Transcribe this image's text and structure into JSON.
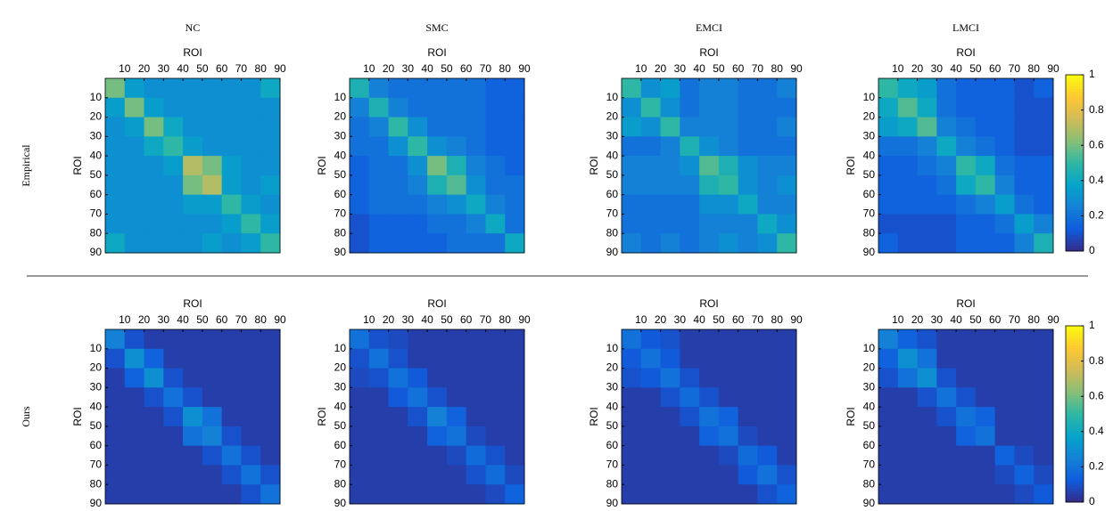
{
  "chart_data": {
    "type": "heatmap",
    "columns": [
      "NC",
      "SMC",
      "EMCI",
      "LMCI"
    ],
    "rows": [
      "Empirical",
      "Ours"
    ],
    "xlabel": "ROI",
    "ylabel": "ROI",
    "xlim": [
      0,
      90
    ],
    "ylim": [
      0,
      90
    ],
    "xticks": [
      10,
      20,
      30,
      40,
      50,
      60,
      70,
      80,
      90
    ],
    "yticks": [
      10,
      20,
      30,
      40,
      50,
      60,
      70,
      80,
      90
    ],
    "clim": [
      0,
      1
    ],
    "cticks": [
      0,
      0.2,
      0.4,
      0.6,
      0.8,
      1
    ],
    "colormap": [
      "#352a87",
      "#0f5cdd",
      "#1481d6",
      "#06a4ca",
      "#2eb7a4",
      "#87bf77",
      "#d1bb59",
      "#fec832",
      "#f9fb0e"
    ],
    "matrices": [
      [
        [
          [
            0.6,
            0.35,
            0.3,
            0.3,
            0.3,
            0.3,
            0.3,
            0.3,
            0.4
          ],
          [
            0.35,
            0.6,
            0.35,
            0.3,
            0.3,
            0.3,
            0.3,
            0.3,
            0.3
          ],
          [
            0.3,
            0.35,
            0.6,
            0.4,
            0.3,
            0.3,
            0.3,
            0.3,
            0.3
          ],
          [
            0.3,
            0.3,
            0.4,
            0.5,
            0.35,
            0.3,
            0.3,
            0.3,
            0.3
          ],
          [
            0.3,
            0.3,
            0.3,
            0.35,
            0.7,
            0.6,
            0.35,
            0.3,
            0.3
          ],
          [
            0.3,
            0.3,
            0.3,
            0.3,
            0.6,
            0.7,
            0.35,
            0.3,
            0.35
          ],
          [
            0.3,
            0.3,
            0.3,
            0.3,
            0.35,
            0.35,
            0.5,
            0.35,
            0.3
          ],
          [
            0.3,
            0.3,
            0.3,
            0.3,
            0.3,
            0.3,
            0.35,
            0.5,
            0.35
          ],
          [
            0.4,
            0.3,
            0.3,
            0.3,
            0.3,
            0.35,
            0.3,
            0.35,
            0.5
          ]
        ],
        [
          [
            0.45,
            0.25,
            0.2,
            0.2,
            0.2,
            0.2,
            0.2,
            0.15,
            0.15
          ],
          [
            0.25,
            0.45,
            0.25,
            0.2,
            0.2,
            0.2,
            0.2,
            0.15,
            0.15
          ],
          [
            0.2,
            0.25,
            0.5,
            0.3,
            0.2,
            0.2,
            0.2,
            0.15,
            0.15
          ],
          [
            0.2,
            0.2,
            0.3,
            0.5,
            0.3,
            0.25,
            0.2,
            0.15,
            0.15
          ],
          [
            0.15,
            0.2,
            0.2,
            0.3,
            0.6,
            0.45,
            0.25,
            0.2,
            0.15
          ],
          [
            0.15,
            0.2,
            0.2,
            0.25,
            0.45,
            0.55,
            0.3,
            0.2,
            0.2
          ],
          [
            0.15,
            0.2,
            0.2,
            0.2,
            0.25,
            0.3,
            0.4,
            0.25,
            0.2
          ],
          [
            0.1,
            0.15,
            0.15,
            0.15,
            0.2,
            0.2,
            0.25,
            0.4,
            0.2
          ],
          [
            0.1,
            0.15,
            0.15,
            0.15,
            0.15,
            0.2,
            0.2,
            0.2,
            0.4
          ]
        ],
        [
          [
            0.5,
            0.3,
            0.35,
            0.2,
            0.25,
            0.25,
            0.2,
            0.2,
            0.25
          ],
          [
            0.3,
            0.5,
            0.3,
            0.2,
            0.25,
            0.25,
            0.2,
            0.2,
            0.2
          ],
          [
            0.35,
            0.3,
            0.5,
            0.25,
            0.25,
            0.25,
            0.2,
            0.2,
            0.25
          ],
          [
            0.2,
            0.2,
            0.25,
            0.45,
            0.3,
            0.25,
            0.2,
            0.2,
            0.2
          ],
          [
            0.25,
            0.25,
            0.25,
            0.3,
            0.55,
            0.45,
            0.3,
            0.25,
            0.25
          ],
          [
            0.25,
            0.25,
            0.25,
            0.25,
            0.45,
            0.5,
            0.3,
            0.25,
            0.3
          ],
          [
            0.2,
            0.2,
            0.2,
            0.2,
            0.3,
            0.3,
            0.4,
            0.25,
            0.25
          ],
          [
            0.2,
            0.2,
            0.2,
            0.2,
            0.25,
            0.25,
            0.25,
            0.4,
            0.3
          ],
          [
            0.25,
            0.2,
            0.25,
            0.2,
            0.25,
            0.3,
            0.25,
            0.3,
            0.5
          ]
        ],
        [
          [
            0.5,
            0.4,
            0.35,
            0.2,
            0.15,
            0.15,
            0.15,
            0.1,
            0.15
          ],
          [
            0.4,
            0.55,
            0.4,
            0.2,
            0.15,
            0.15,
            0.15,
            0.1,
            0.1
          ],
          [
            0.35,
            0.4,
            0.55,
            0.25,
            0.2,
            0.15,
            0.15,
            0.1,
            0.1
          ],
          [
            0.2,
            0.2,
            0.25,
            0.4,
            0.25,
            0.2,
            0.15,
            0.1,
            0.1
          ],
          [
            0.15,
            0.15,
            0.2,
            0.25,
            0.5,
            0.4,
            0.2,
            0.15,
            0.15
          ],
          [
            0.15,
            0.15,
            0.15,
            0.2,
            0.4,
            0.5,
            0.25,
            0.15,
            0.15
          ],
          [
            0.15,
            0.15,
            0.15,
            0.15,
            0.2,
            0.25,
            0.35,
            0.2,
            0.15
          ],
          [
            0.1,
            0.1,
            0.1,
            0.1,
            0.15,
            0.15,
            0.2,
            0.35,
            0.25
          ],
          [
            0.15,
            0.1,
            0.1,
            0.1,
            0.15,
            0.15,
            0.15,
            0.25,
            0.45
          ]
        ]
      ],
      [
        [
          [
            0.25,
            0.1,
            0.05,
            0.05,
            0.05,
            0.05,
            0.05,
            0.05,
            0.05
          ],
          [
            0.1,
            0.3,
            0.15,
            0.05,
            0.05,
            0.05,
            0.05,
            0.05,
            0.05
          ],
          [
            0.05,
            0.15,
            0.3,
            0.1,
            0.05,
            0.05,
            0.05,
            0.05,
            0.05
          ],
          [
            0.05,
            0.05,
            0.1,
            0.2,
            0.1,
            0.05,
            0.05,
            0.05,
            0.05
          ],
          [
            0.05,
            0.05,
            0.05,
            0.1,
            0.3,
            0.2,
            0.05,
            0.05,
            0.05
          ],
          [
            0.05,
            0.05,
            0.05,
            0.05,
            0.2,
            0.25,
            0.1,
            0.05,
            0.05
          ],
          [
            0.05,
            0.05,
            0.05,
            0.05,
            0.05,
            0.1,
            0.2,
            0.1,
            0.05
          ],
          [
            0.05,
            0.05,
            0.05,
            0.05,
            0.05,
            0.05,
            0.1,
            0.2,
            0.1
          ],
          [
            0.05,
            0.05,
            0.05,
            0.05,
            0.05,
            0.05,
            0.05,
            0.1,
            0.2
          ]
        ],
        [
          [
            0.2,
            0.1,
            0.08,
            0.05,
            0.05,
            0.05,
            0.05,
            0.05,
            0.05
          ],
          [
            0.1,
            0.2,
            0.1,
            0.05,
            0.05,
            0.05,
            0.05,
            0.05,
            0.05
          ],
          [
            0.08,
            0.1,
            0.2,
            0.12,
            0.05,
            0.05,
            0.05,
            0.05,
            0.05
          ],
          [
            0.05,
            0.05,
            0.12,
            0.2,
            0.1,
            0.05,
            0.05,
            0.05,
            0.05
          ],
          [
            0.05,
            0.05,
            0.05,
            0.1,
            0.25,
            0.15,
            0.05,
            0.05,
            0.05
          ],
          [
            0.05,
            0.05,
            0.05,
            0.05,
            0.15,
            0.2,
            0.08,
            0.05,
            0.05
          ],
          [
            0.05,
            0.05,
            0.05,
            0.05,
            0.05,
            0.08,
            0.18,
            0.1,
            0.05
          ],
          [
            0.05,
            0.05,
            0.05,
            0.05,
            0.05,
            0.05,
            0.1,
            0.18,
            0.08
          ],
          [
            0.05,
            0.05,
            0.05,
            0.05,
            0.05,
            0.05,
            0.05,
            0.08,
            0.15
          ]
        ],
        [
          [
            0.2,
            0.12,
            0.1,
            0.05,
            0.05,
            0.05,
            0.05,
            0.05,
            0.05
          ],
          [
            0.12,
            0.2,
            0.12,
            0.05,
            0.05,
            0.05,
            0.05,
            0.05,
            0.05
          ],
          [
            0.1,
            0.12,
            0.2,
            0.1,
            0.05,
            0.05,
            0.05,
            0.05,
            0.05
          ],
          [
            0.05,
            0.05,
            0.1,
            0.18,
            0.1,
            0.05,
            0.05,
            0.05,
            0.05
          ],
          [
            0.05,
            0.05,
            0.05,
            0.1,
            0.2,
            0.15,
            0.05,
            0.05,
            0.05
          ],
          [
            0.05,
            0.05,
            0.05,
            0.05,
            0.15,
            0.2,
            0.08,
            0.05,
            0.05
          ],
          [
            0.05,
            0.05,
            0.05,
            0.05,
            0.05,
            0.08,
            0.18,
            0.12,
            0.05
          ],
          [
            0.05,
            0.05,
            0.05,
            0.05,
            0.05,
            0.05,
            0.12,
            0.2,
            0.1
          ],
          [
            0.05,
            0.05,
            0.05,
            0.05,
            0.05,
            0.05,
            0.05,
            0.1,
            0.15
          ]
        ],
        [
          [
            0.25,
            0.15,
            0.1,
            0.05,
            0.05,
            0.05,
            0.05,
            0.05,
            0.05
          ],
          [
            0.15,
            0.3,
            0.2,
            0.05,
            0.05,
            0.05,
            0.05,
            0.05,
            0.05
          ],
          [
            0.1,
            0.2,
            0.3,
            0.1,
            0.05,
            0.05,
            0.05,
            0.05,
            0.05
          ],
          [
            0.05,
            0.05,
            0.1,
            0.2,
            0.1,
            0.05,
            0.05,
            0.05,
            0.05
          ],
          [
            0.05,
            0.05,
            0.05,
            0.1,
            0.2,
            0.15,
            0.05,
            0.05,
            0.05
          ],
          [
            0.05,
            0.05,
            0.05,
            0.05,
            0.15,
            0.2,
            0.05,
            0.05,
            0.05
          ],
          [
            0.05,
            0.05,
            0.05,
            0.05,
            0.05,
            0.05,
            0.15,
            0.08,
            0.05
          ],
          [
            0.05,
            0.05,
            0.05,
            0.05,
            0.05,
            0.05,
            0.08,
            0.15,
            0.08
          ],
          [
            0.05,
            0.05,
            0.05,
            0.05,
            0.05,
            0.05,
            0.05,
            0.08,
            0.12
          ]
        ]
      ]
    ]
  }
}
